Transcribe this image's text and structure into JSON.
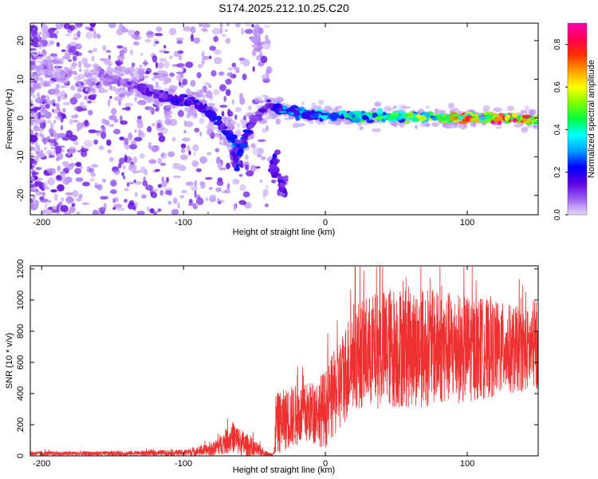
{
  "figure": {
    "title": "S174.2025.212.10.25.C20"
  },
  "chart_data": [
    {
      "type": "heatmap",
      "title": "S174.2025.212.10.25.C20",
      "xlabel": "Height of straight line (km)",
      "ylabel": "Frequency (Hz)",
      "xlim": [
        -208,
        150
      ],
      "ylim": [
        -25,
        24.5
      ],
      "xticks": [
        -200,
        -100,
        0,
        100
      ],
      "yticks": [
        -20,
        -10,
        0,
        10,
        20
      ],
      "grid": false,
      "colorbar": {
        "label": "Normalized spectral amplitude",
        "range": [
          0,
          0.9
        ],
        "ticks": [
          0.0,
          0.2,
          0.4,
          0.6,
          0.8
        ],
        "colormap": [
          "#e8d8f8",
          "#9a60f0",
          "#5a00e0",
          "#0000ff",
          "#00a0ff",
          "#00ffff",
          "#00ff40",
          "#80ff00",
          "#ffff00",
          "#ffa000",
          "#ff3000",
          "#ff0050",
          "#ff00b0"
        ]
      },
      "ridge": [
        {
          "x": -208,
          "f": 12,
          "amp": 0.05
        },
        {
          "x": -150,
          "f": 10,
          "amp": 0.08
        },
        {
          "x": -130,
          "f": 8,
          "amp": 0.12
        },
        {
          "x": -110,
          "f": 5,
          "amp": 0.15
        },
        {
          "x": -90,
          "f": 4,
          "amp": 0.2
        },
        {
          "x": -75,
          "f": -1,
          "amp": 0.2
        },
        {
          "x": -60,
          "f": -8,
          "amp": 0.25
        },
        {
          "x": -50,
          "f": 0,
          "amp": 0.1
        },
        {
          "x": -40,
          "f": 3,
          "amp": 0.15
        },
        {
          "x": -30,
          "f": 2,
          "amp": 0.25
        },
        {
          "x": -10,
          "f": 1,
          "amp": 0.3
        },
        {
          "x": 10,
          "f": 0.5,
          "amp": 0.35
        },
        {
          "x": 40,
          "f": 0.5,
          "amp": 0.4
        },
        {
          "x": 80,
          "f": 0.2,
          "amp": 0.5
        },
        {
          "x": 100,
          "f": 0,
          "amp": 0.6
        },
        {
          "x": 130,
          "f": 0,
          "amp": 0.8
        },
        {
          "x": 150,
          "f": -0.5,
          "amp": 0.5
        }
      ],
      "branches": [
        {
          "x": -62,
          "f": -10,
          "amp": 0.2
        },
        {
          "x": -48,
          "f": 20,
          "amp": 0.05
        },
        {
          "x": -36,
          "f": -12,
          "amp": 0.2
        },
        {
          "x": -30,
          "f": -17,
          "amp": 0.15
        }
      ]
    },
    {
      "type": "line",
      "xlabel": "Height of straight line (km)",
      "ylabel": "SNR (10 * v/v)",
      "xlim": [
        -208,
        150
      ],
      "ylim": [
        0,
        1220
      ],
      "xticks": [
        -200,
        -100,
        0,
        100
      ],
      "yticks": [
        0,
        200,
        400,
        600,
        800,
        1000,
        1200
      ],
      "grid": false,
      "series": [
        {
          "color": "#ee3030",
          "envelope": [
            {
              "x": -208,
              "base": 15,
              "noise": 15
            },
            {
              "x": -150,
              "base": 15,
              "noise": 15
            },
            {
              "x": -100,
              "base": 20,
              "noise": 20
            },
            {
              "x": -80,
              "base": 40,
              "noise": 40
            },
            {
              "x": -65,
              "base": 120,
              "noise": 100
            },
            {
              "x": -55,
              "base": 60,
              "noise": 80
            },
            {
              "x": -40,
              "base": 10,
              "noise": 10
            },
            {
              "x": -36,
              "base": 15,
              "noise": 15
            },
            {
              "x": -35,
              "base": 200,
              "noise": 200
            },
            {
              "x": -25,
              "base": 250,
              "noise": 200
            },
            {
              "x": -10,
              "base": 280,
              "noise": 200
            },
            {
              "x": 0,
              "base": 300,
              "noise": 250
            },
            {
              "x": 10,
              "base": 450,
              "noise": 300
            },
            {
              "x": 20,
              "base": 650,
              "noise": 350
            },
            {
              "x": 50,
              "base": 700,
              "noise": 400
            },
            {
              "x": 100,
              "base": 690,
              "noise": 350
            },
            {
              "x": 150,
              "base": 680,
              "noise": 250
            }
          ]
        }
      ]
    }
  ]
}
